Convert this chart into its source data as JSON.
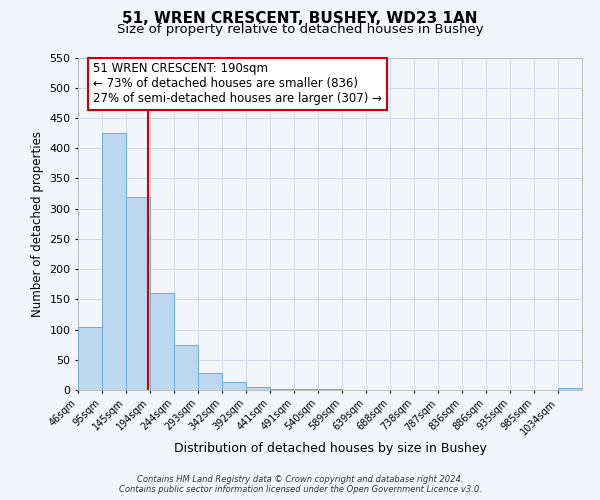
{
  "title": "51, WREN CRESCENT, BUSHEY, WD23 1AN",
  "subtitle": "Size of property relative to detached houses in Bushey",
  "xlabel": "Distribution of detached houses by size in Bushey",
  "ylabel": "Number of detached properties",
  "bar_values": [
    105,
    425,
    320,
    160,
    75,
    28,
    13,
    5,
    2,
    2,
    1,
    0,
    0,
    0,
    0,
    0,
    0,
    0,
    0,
    0,
    3
  ],
  "bin_labels": [
    "46sqm",
    "95sqm",
    "145sqm",
    "194sqm",
    "244sqm",
    "293sqm",
    "342sqm",
    "392sqm",
    "441sqm",
    "491sqm",
    "540sqm",
    "589sqm",
    "639sqm",
    "688sqm",
    "738sqm",
    "787sqm",
    "836sqm",
    "886sqm",
    "935sqm",
    "985sqm",
    "1034sqm"
  ],
  "bin_edges": [
    46,
    95,
    145,
    194,
    244,
    293,
    342,
    392,
    441,
    491,
    540,
    589,
    639,
    688,
    738,
    787,
    836,
    886,
    935,
    985,
    1034,
    1083
  ],
  "bar_color": "#bdd7ee",
  "bar_edgecolor": "#6aaed6",
  "vline_x": 190,
  "vline_color": "#cc0000",
  "ylim": [
    0,
    550
  ],
  "yticks": [
    0,
    50,
    100,
    150,
    200,
    250,
    300,
    350,
    400,
    450,
    500,
    550
  ],
  "annotation_title": "51 WREN CRESCENT: 190sqm",
  "annotation_line1": "← 73% of detached houses are smaller (836)",
  "annotation_line2": "27% of semi-detached houses are larger (307) →",
  "annotation_box_color": "#cc0000",
  "grid_color": "#d0d8e8",
  "footer1": "Contains HM Land Registry data © Crown copyright and database right 2024.",
  "footer2": "Contains public sector information licensed under the Open Government Licence v3.0.",
  "background_color": "#f2f5fc",
  "title_fontsize": 11,
  "subtitle_fontsize": 9.5,
  "annotation_fontsize": 8.5,
  "ylabel_fontsize": 8.5,
  "xlabel_fontsize": 9
}
